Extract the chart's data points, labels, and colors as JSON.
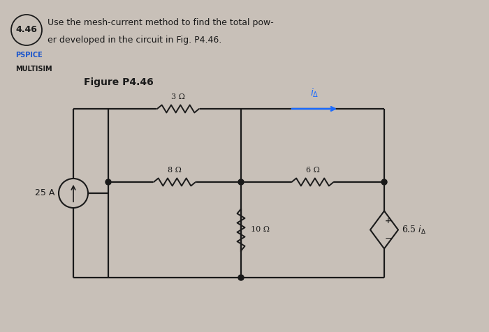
{
  "bg_color": "#c8c0b8",
  "circuit_bg": "#e8e2d8",
  "wire_color": "#1a1a1a",
  "arrow_color": "#1a6aff",
  "title_number": "4.46",
  "title_line1": "Use the mesh-current method to find the total pow-",
  "title_line2": "er developed in the circuit in Fig. P4.46.",
  "pspice_label": "PSPICE",
  "multisim_label": "MULTISIM",
  "figure_label": "Figure P4.46",
  "R1_label": "3 Ω",
  "R2_label": "8 Ω",
  "R3_label": "6 Ω",
  "R4_label": "10 Ω",
  "cs_label": "25 A",
  "dvs_label": "6.5 i",
  "i_label": "iΔ",
  "plus": "+",
  "minus": "−"
}
